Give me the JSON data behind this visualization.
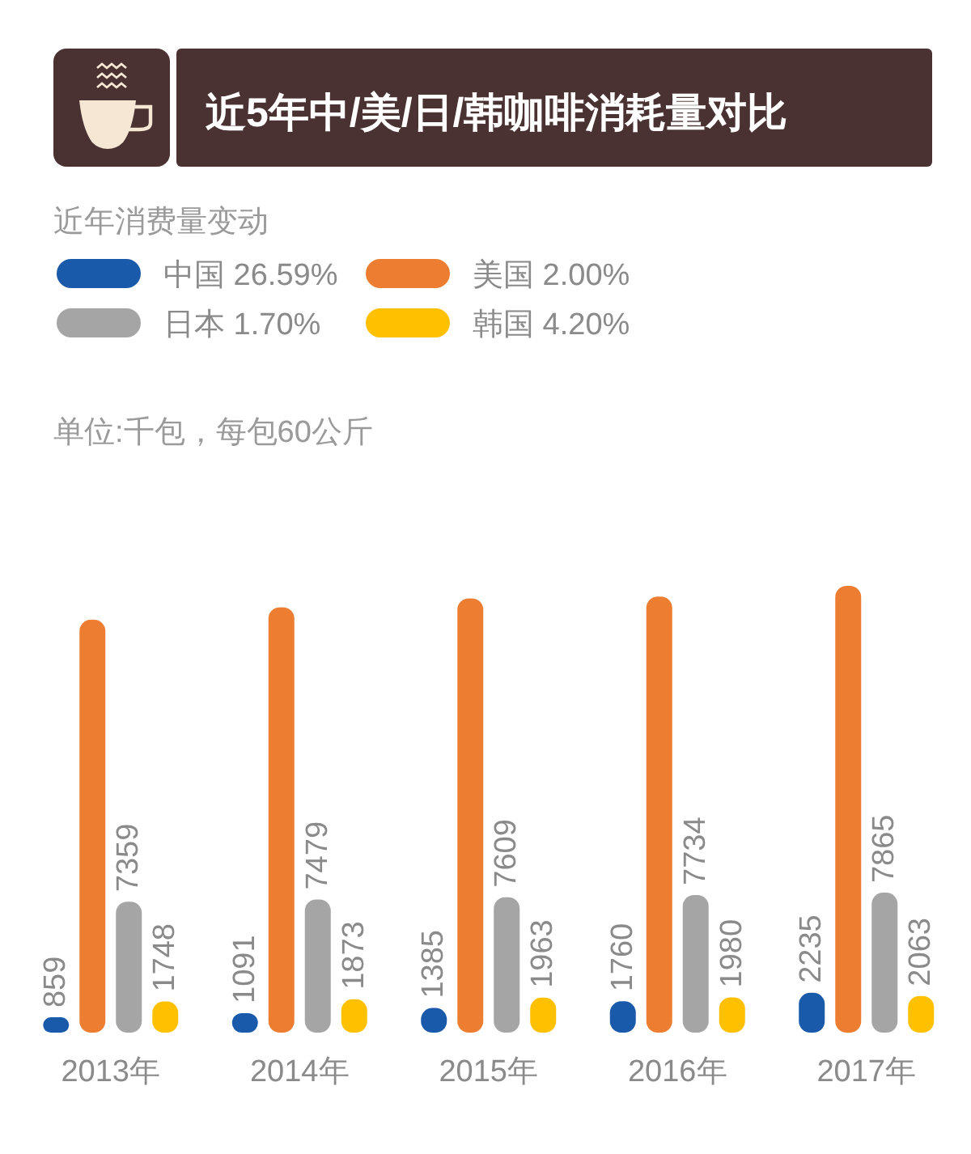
{
  "chart_data": {
    "type": "bar",
    "title": "近5年中/美/日/韩咖啡消耗量对比",
    "legend_title": "近年消费量变动",
    "annotations": [
      "单位:千包，每包60公斤"
    ],
    "categories": [
      "2013年",
      "2014年",
      "2015年",
      "2016年",
      "2017年"
    ],
    "series": [
      {
        "name": "中国 26.59%",
        "color": "#1a5aaa",
        "values": [
          859,
          1091,
          1385,
          1760,
          2235
        ],
        "value_labels": [
          "859",
          "1091",
          "1385",
          "1760",
          "2235"
        ]
      },
      {
        "name": "美国 2.00%",
        "color": "#ed7d31",
        "values": [
          23200,
          23900,
          24400,
          24500,
          25100
        ],
        "value_labels": [
          null,
          null,
          null,
          null,
          null
        ]
      },
      {
        "name": "日本 1.70%",
        "color": "#a5a5a5",
        "values": [
          7359,
          7479,
          7609,
          7734,
          7865
        ],
        "value_labels": [
          "7359",
          "7479",
          "7609",
          "7734",
          "7865"
        ]
      },
      {
        "name": "韩国 4.20%",
        "color": "#ffc000",
        "values": [
          1748,
          1873,
          1963,
          1980,
          2063
        ],
        "value_labels": [
          "1748",
          "1873",
          "1963",
          "1980",
          "2063"
        ]
      }
    ],
    "legend": "top left"
  }
}
